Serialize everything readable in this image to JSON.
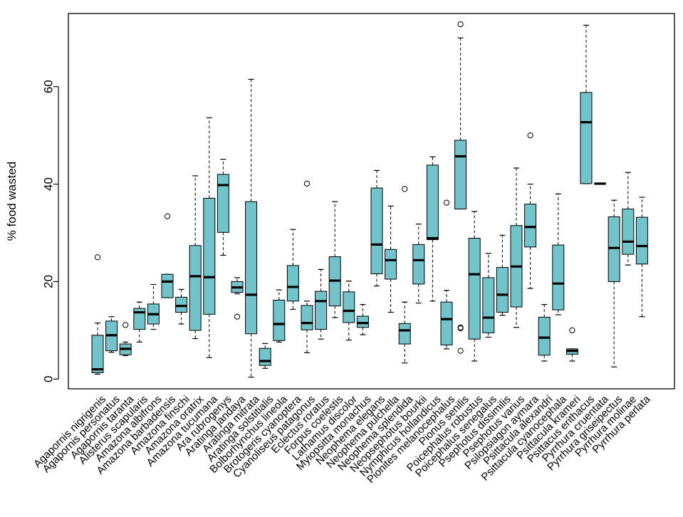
{
  "chart_data": {
    "type": "box",
    "ylabel": "% food wasted",
    "xlabel": "",
    "ylim": [
      -2,
      75
    ],
    "yticks": [
      0,
      20,
      40,
      60
    ],
    "grid": false,
    "box_color": "#72c4ca",
    "categories": [
      "Agapornis nigrigenis",
      "Agapornis personatus",
      "Agapornis taranta",
      "Alisterus scapularis",
      "Amazona albifrons",
      "Amazona barbadensis",
      "Amazona finschi",
      "Amazona oratrix",
      "Amazona tucumana",
      "Ara rubrogenys",
      "Aratinga jandaya",
      "Aratinga mitrata",
      "Aratinga solstitialis",
      "Bolborhynchus lineola",
      "Brotogeris cyanoptera",
      "Cyanoliseus patagonus",
      "Eclectus roratus",
      "Forpus coelestis",
      "Lathamus discolor",
      "Myiopsitta monachus",
      "Neophema elegans",
      "Neophema pulchella",
      "Neophema splendida",
      "Neopsephotus bourkii",
      "Nymphicus hollandicus",
      "Pionites melanocephalus",
      "Pionus senilis",
      "Poicephalus robustus",
      "Poicephalus senegalus",
      "Psephotus dissimilis",
      "Psephotus varius",
      "Psilopsiagon aymara",
      "Psittacula alexandri",
      "Psittacula cyanocephala",
      "Psittacula krameri",
      "Psittacus erithacus",
      "Pyrrhura cruentata",
      "Pyrrhura griseipectus",
      "Pyrrhura molinae",
      "Pyrrhura perlata"
    ],
    "boxes": [
      {
        "whislo": 1.0,
        "q1": 1.3,
        "med": 2.0,
        "q3": 9.0,
        "whishi": 11.5,
        "fliers": [
          25.0
        ]
      },
      {
        "whislo": 5.5,
        "q1": 5.8,
        "med": 9.0,
        "q3": 11.9,
        "whishi": 12.8,
        "fliers": []
      },
      {
        "whislo": 4.8,
        "q1": 5.0,
        "med": 6.2,
        "q3": 7.2,
        "whishi": 7.6,
        "fliers": [
          11.1
        ]
      },
      {
        "whislo": 7.6,
        "q1": 10.2,
        "med": 13.7,
        "q3": 14.5,
        "whishi": 15.8,
        "fliers": []
      },
      {
        "whislo": 10.2,
        "q1": 11.3,
        "med": 13.3,
        "q3": 15.4,
        "whishi": 19.4,
        "fliers": []
      },
      {
        "whislo": 16.7,
        "q1": 16.7,
        "med": 20.0,
        "q3": 21.5,
        "whishi": 21.5,
        "fliers": [
          33.4
        ]
      },
      {
        "whislo": 11.3,
        "q1": 13.7,
        "med": 15.0,
        "q3": 16.8,
        "whishi": 18.4,
        "fliers": []
      },
      {
        "whislo": 8.3,
        "q1": 10.0,
        "med": 21.1,
        "q3": 27.4,
        "whishi": 41.7,
        "fliers": []
      },
      {
        "whislo": 4.4,
        "q1": 13.3,
        "med": 20.9,
        "q3": 37.1,
        "whishi": 53.6,
        "fliers": []
      },
      {
        "whislo": 25.4,
        "q1": 30.1,
        "med": 39.8,
        "q3": 42.0,
        "whishi": 45.1,
        "fliers": []
      },
      {
        "whislo": 17.5,
        "q1": 17.8,
        "med": 18.8,
        "q3": 20.0,
        "whishi": 20.8,
        "fliers": [
          12.8
        ]
      },
      {
        "whislo": 0.4,
        "q1": 9.3,
        "med": 17.3,
        "q3": 36.4,
        "whishi": 61.5,
        "fliers": []
      },
      {
        "whislo": 2.2,
        "q1": 2.8,
        "med": 3.7,
        "q3": 6.3,
        "whishi": 7.3,
        "fliers": []
      },
      {
        "whislo": 7.6,
        "q1": 7.9,
        "med": 11.3,
        "q3": 16.2,
        "whishi": 18.3,
        "fliers": []
      },
      {
        "whislo": 14.3,
        "q1": 16.0,
        "med": 18.9,
        "q3": 23.3,
        "whishi": 30.7,
        "fliers": []
      },
      {
        "whislo": 5.4,
        "q1": 10.1,
        "med": 11.5,
        "q3": 15.1,
        "whishi": 16.0,
        "fliers": [
          40.1
        ]
      },
      {
        "whislo": 8.2,
        "q1": 10.2,
        "med": 16.0,
        "q3": 18.0,
        "whishi": 22.5,
        "fliers": []
      },
      {
        "whislo": 12.6,
        "q1": 15.0,
        "med": 20.2,
        "q3": 25.1,
        "whishi": 36.4,
        "fliers": []
      },
      {
        "whislo": 8.0,
        "q1": 11.6,
        "med": 14.0,
        "q3": 17.9,
        "whishi": 20.1,
        "fliers": []
      },
      {
        "whislo": 9.1,
        "q1": 10.6,
        "med": 11.5,
        "q3": 12.9,
        "whishi": 15.3,
        "fliers": []
      },
      {
        "whislo": 19.1,
        "q1": 21.6,
        "med": 27.6,
        "q3": 39.2,
        "whishi": 42.8,
        "fliers": []
      },
      {
        "whislo": 13.7,
        "q1": 20.5,
        "med": 24.4,
        "q3": 26.6,
        "whishi": 35.5,
        "fliers": []
      },
      {
        "whislo": 3.3,
        "q1": 7.2,
        "med": 10.0,
        "q3": 11.4,
        "whishi": 15.8,
        "fliers": [
          39.0
        ]
      },
      {
        "whislo": 15.6,
        "q1": 19.5,
        "med": 24.4,
        "q3": 27.6,
        "whishi": 31.8,
        "fliers": []
      },
      {
        "whislo": 16.0,
        "q1": 28.6,
        "med": 28.9,
        "q3": 43.9,
        "whishi": 45.6,
        "fliers": []
      },
      {
        "whislo": 6.2,
        "q1": 7.0,
        "med": 12.3,
        "q3": 15.8,
        "whishi": 18.2,
        "fliers": [
          36.2
        ]
      },
      {
        "whislo": 34.9,
        "q1": 34.9,
        "med": 45.7,
        "q3": 49.0,
        "whishi": 70.0,
        "fliers": [
          72.8,
          10.6,
          10.4,
          5.8
        ]
      },
      {
        "whislo": 3.7,
        "q1": 8.2,
        "med": 21.5,
        "q3": 28.9,
        "whishi": 34.4,
        "fliers": []
      },
      {
        "whislo": 8.6,
        "q1": 9.5,
        "med": 12.6,
        "q3": 20.8,
        "whishi": 25.8,
        "fliers": []
      },
      {
        "whislo": 13.1,
        "q1": 13.7,
        "med": 17.3,
        "q3": 22.9,
        "whishi": 29.5,
        "fliers": []
      },
      {
        "whislo": 10.6,
        "q1": 14.8,
        "med": 23.1,
        "q3": 31.5,
        "whishi": 43.3,
        "fliers": []
      },
      {
        "whislo": 18.6,
        "q1": 27.1,
        "med": 31.2,
        "q3": 35.9,
        "whishi": 40.0,
        "fliers": [
          50.0
        ]
      },
      {
        "whislo": 3.7,
        "q1": 4.9,
        "med": 8.5,
        "q3": 12.7,
        "whishi": 15.3,
        "fliers": []
      },
      {
        "whislo": 13.2,
        "q1": 14.2,
        "med": 19.6,
        "q3": 27.5,
        "whishi": 38.0,
        "fliers": []
      },
      {
        "whislo": 3.7,
        "q1": 5.1,
        "med": 5.8,
        "q3": 6.2,
        "whishi": 6.2,
        "fliers": [
          10.0
        ]
      },
      {
        "whislo": 40.1,
        "q1": 40.1,
        "med": 52.7,
        "q3": 58.8,
        "whishi": 72.6,
        "fliers": []
      },
      {
        "whislo": 40.1,
        "q1": 40.1,
        "med": 40.1,
        "q3": 40.1,
        "whishi": 40.1,
        "fliers": []
      },
      {
        "whislo": 2.5,
        "q1": 20.0,
        "med": 26.9,
        "q3": 33.3,
        "whishi": 36.7,
        "fliers": []
      },
      {
        "whislo": 23.4,
        "q1": 25.6,
        "med": 28.2,
        "q3": 34.9,
        "whishi": 42.4,
        "fliers": []
      },
      {
        "whislo": 12.8,
        "q1": 23.6,
        "med": 27.3,
        "q3": 33.2,
        "whishi": 37.3,
        "fliers": []
      }
    ]
  }
}
